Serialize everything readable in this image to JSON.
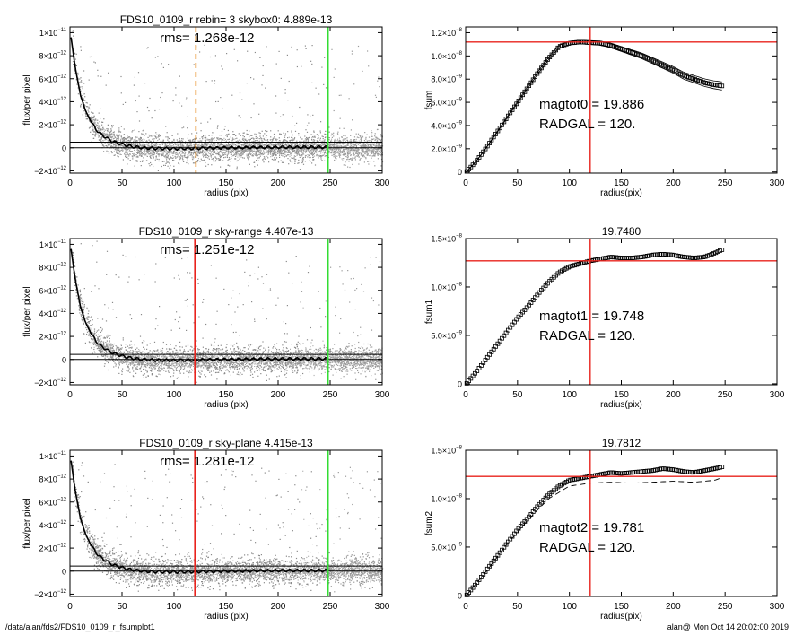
{
  "footer": {
    "left": "/data/alan/fds2/FDS10_0109_r_fsumplot1",
    "right": "alan@  Mon Oct 14 20:02:00 2019"
  },
  "colors": {
    "red": "#e8231d",
    "orange": "#e88a1a",
    "green": "#33dd33",
    "black": "#000000",
    "gray": "#7f7f7f"
  },
  "chart_data": [
    {
      "type": "scatter",
      "title": "FDS10_0109_r rebin= 3    skybox0:  4.889e-13",
      "annotation": "rms= 1.268e-12",
      "xlabel": "radius (pix)",
      "ylabel": "flux/per pixel",
      "xlim": [
        0,
        300
      ],
      "ylim": [
        -2.2e-12,
        1.05e-11
      ],
      "xticks": [
        "0",
        "50",
        "100",
        "150",
        "200",
        "250",
        "300"
      ],
      "ytick_values": [
        -2e-12,
        0,
        2e-12,
        4e-12,
        6e-12,
        8e-12,
        1e-11
      ],
      "ytick_mantissa": [
        "−2×10",
        "0",
        "2×10",
        "4×10",
        "6×10",
        "8×10",
        "1×10"
      ],
      "ytick_exponent": [
        "−12",
        "",
        "−12",
        "−12",
        "−12",
        "−12",
        "−11"
      ],
      "profile": {
        "x": [
          1,
          5,
          10,
          15,
          20,
          25,
          30,
          40,
          50,
          60,
          70,
          80,
          100,
          120,
          150,
          200,
          248
        ],
        "y": [
          9.6e-12,
          7e-12,
          4.6e-12,
          3.2e-12,
          2.3e-12,
          1.6e-12,
          1.15e-12,
          6e-13,
          3e-13,
          1e-13,
          0.0,
          -5e-14,
          -8e-14,
          -5e-14,
          0.0,
          5e-14,
          5e-14
        ]
      },
      "hlines": [
        4.89e-13,
        0
      ],
      "vlines": [
        {
          "x": 121,
          "color": "orange",
          "style": "dashed"
        },
        {
          "x": 248,
          "color": "green",
          "style": "solid"
        }
      ]
    },
    {
      "type": "line",
      "title": "",
      "annotation": [
        "magtot0 =  19.886",
        "RADGAL =    120."
      ],
      "xlabel": "radius(pix)",
      "ylabel": "fsum",
      "xlim": [
        0,
        300
      ],
      "ylim": [
        -1e-10,
        1.25e-08
      ],
      "xticks": [
        "0",
        "50",
        "100",
        "150",
        "200",
        "250",
        "300"
      ],
      "ytick_values": [
        0,
        2e-09,
        4e-09,
        6e-09,
        8e-09,
        1e-08,
        1.2e-08
      ],
      "ytick_mantissa": [
        "0",
        "2.0×10",
        "4.0×10",
        "6.0×10",
        "8.0×10",
        "1.0×10",
        "1.2×10"
      ],
      "ytick_exponent": [
        "",
        "−9",
        "−9",
        "−9",
        "−9",
        "−8",
        "−8"
      ],
      "curve": {
        "x": [
          1,
          10,
          20,
          30,
          40,
          50,
          60,
          70,
          80,
          90,
          100,
          110,
          120,
          130,
          140,
          150,
          160,
          170,
          180,
          190,
          200,
          210,
          220,
          230,
          240,
          248
        ],
        "y": [
          5e-11,
          9e-10,
          2.1e-09,
          3.4e-09,
          4.7e-09,
          6e-09,
          7.3e-09,
          8.6e-09,
          9.8e-09,
          1.08e-08,
          1.11e-08,
          1.12e-08,
          1.115e-08,
          1.11e-08,
          1.09e-08,
          1.06e-08,
          1.03e-08,
          1e-08,
          9.6e-09,
          9.2e-09,
          8.8e-09,
          8.3e-09,
          8e-09,
          7.7e-09,
          7.5e-09,
          7.4e-09
        ]
      },
      "band": 3.5e-10,
      "hline": 1.12e-08,
      "vline": 120
    },
    {
      "type": "scatter",
      "title": "FDS10_0109_r sky-range  4.407e-13",
      "annotation": "rms= 1.251e-12",
      "xlabel": "radius (pix)",
      "ylabel": "flux/per pixel",
      "xlim": [
        0,
        300
      ],
      "ylim": [
        -2.2e-12,
        1.05e-11
      ],
      "xticks": [
        "0",
        "50",
        "100",
        "150",
        "200",
        "250",
        "300"
      ],
      "ytick_values": [
        -2e-12,
        0,
        2e-12,
        4e-12,
        6e-12,
        8e-12,
        1e-11
      ],
      "ytick_mantissa": [
        "−2×10",
        "0",
        "2×10",
        "4×10",
        "6×10",
        "8×10",
        "1×10"
      ],
      "ytick_exponent": [
        "−12",
        "",
        "−12",
        "−12",
        "−12",
        "−12",
        "−11"
      ],
      "profile": {
        "x": [
          1,
          5,
          10,
          15,
          20,
          25,
          30,
          40,
          50,
          60,
          70,
          80,
          100,
          120,
          150,
          200,
          248
        ],
        "y": [
          9.6e-12,
          7e-12,
          4.6e-12,
          3.2e-12,
          2.3e-12,
          1.6e-12,
          1.15e-12,
          6e-13,
          3e-13,
          1e-13,
          0.0,
          -5e-14,
          -8e-14,
          -5e-14,
          0.0,
          5e-14,
          5e-14
        ]
      },
      "hlines": [
        4.4e-13,
        0
      ],
      "vlines": [
        {
          "x": 120,
          "color": "red",
          "style": "solid"
        },
        {
          "x": 248,
          "color": "green",
          "style": "solid"
        }
      ]
    },
    {
      "type": "line",
      "title": "19.7480",
      "annotation": [
        "magtot1 =  19.748",
        "RADGAL =    120."
      ],
      "xlabel": "radius(pix)",
      "ylabel": "fsum1",
      "xlim": [
        0,
        300
      ],
      "ylim": [
        -1e-10,
        1.5e-08
      ],
      "xticks": [
        "0",
        "50",
        "100",
        "150",
        "200",
        "250",
        "300"
      ],
      "ytick_values": [
        0,
        5e-09,
        1e-08,
        1.5e-08
      ],
      "ytick_mantissa": [
        "0",
        "5.0×10",
        "1.0×10",
        "1.5×10"
      ],
      "ytick_exponent": [
        "",
        "−9",
        "−8",
        "−8"
      ],
      "curve": {
        "x": [
          1,
          10,
          20,
          30,
          40,
          50,
          60,
          70,
          80,
          90,
          100,
          110,
          120,
          130,
          140,
          150,
          160,
          170,
          180,
          190,
          200,
          210,
          220,
          230,
          240,
          248
        ],
        "y": [
          5e-11,
          1.2e-09,
          2.6e-09,
          4e-09,
          5.4e-09,
          6.8e-09,
          8e-09,
          9.3e-09,
          1.05e-08,
          1.15e-08,
          1.21e-08,
          1.24e-08,
          1.27e-08,
          1.29e-08,
          1.31e-08,
          1.3e-08,
          1.3e-08,
          1.31e-08,
          1.33e-08,
          1.34e-08,
          1.33e-08,
          1.31e-08,
          1.3e-08,
          1.31e-08,
          1.35e-08,
          1.39e-08
        ]
      },
      "hline": 1.27e-08,
      "vline": 120
    },
    {
      "type": "scatter",
      "title": "FDS10_0109_r sky-plane  4.415e-13",
      "annotation": "rms= 1.281e-12",
      "xlabel": "radius (pix)",
      "ylabel": "flux/per pixel",
      "xlim": [
        0,
        300
      ],
      "ylim": [
        -2.2e-12,
        1.05e-11
      ],
      "xticks": [
        "0",
        "50",
        "100",
        "150",
        "200",
        "250",
        "300"
      ],
      "ytick_values": [
        -2e-12,
        0,
        2e-12,
        4e-12,
        6e-12,
        8e-12,
        1e-11
      ],
      "ytick_mantissa": [
        "−2×10",
        "0",
        "2×10",
        "4×10",
        "6×10",
        "8×10",
        "1×10"
      ],
      "ytick_exponent": [
        "−12",
        "",
        "−12",
        "−12",
        "−12",
        "−12",
        "−11"
      ],
      "profile": {
        "x": [
          1,
          5,
          10,
          15,
          20,
          25,
          30,
          40,
          50,
          60,
          70,
          80,
          100,
          120,
          150,
          200,
          248
        ],
        "y": [
          9.6e-12,
          7e-12,
          4.6e-12,
          3.2e-12,
          2.3e-12,
          1.6e-12,
          1.15e-12,
          6e-13,
          3e-13,
          1e-13,
          0.0,
          -5e-14,
          -8e-14,
          -5e-14,
          0.0,
          5e-14,
          5e-14
        ]
      },
      "hlines": [
        4.4e-13,
        0
      ],
      "vlines": [
        {
          "x": 120,
          "color": "red",
          "style": "solid"
        },
        {
          "x": 248,
          "color": "green",
          "style": "solid"
        }
      ]
    },
    {
      "type": "line",
      "title": "19.7812",
      "annotation": [
        "magtot2 =  19.781",
        "RADGAL =    120."
      ],
      "xlabel": "radius(pix)",
      "ylabel": "fsum2",
      "xlim": [
        0,
        300
      ],
      "ylim": [
        -1e-10,
        1.5e-08
      ],
      "xticks": [
        "0",
        "50",
        "100",
        "150",
        "200",
        "250",
        "300"
      ],
      "ytick_values": [
        0,
        5e-09,
        1e-08,
        1.5e-08
      ],
      "ytick_mantissa": [
        "0",
        "5.0×10",
        "1.0×10",
        "1.5×10"
      ],
      "ytick_exponent": [
        "",
        "−9",
        "−8",
        "−8"
      ],
      "curve": {
        "x": [
          1,
          10,
          20,
          30,
          40,
          50,
          60,
          70,
          80,
          90,
          100,
          110,
          120,
          130,
          140,
          150,
          160,
          170,
          180,
          190,
          200,
          210,
          220,
          230,
          240,
          248
        ],
        "y": [
          5e-11,
          1.2e-09,
          2.6e-09,
          4e-09,
          5.4e-09,
          6.8e-09,
          8e-09,
          9.3e-09,
          1.04e-08,
          1.13e-08,
          1.19e-08,
          1.21e-08,
          1.23e-08,
          1.25e-08,
          1.27e-08,
          1.26e-08,
          1.27e-08,
          1.28e-08,
          1.29e-08,
          1.31e-08,
          1.3e-08,
          1.28e-08,
          1.27e-08,
          1.29e-08,
          1.31e-08,
          1.33e-08
        ]
      },
      "dashed": {
        "x": [
          1,
          20,
          40,
          60,
          80,
          100,
          120,
          140,
          160,
          180,
          200,
          220,
          240,
          248
        ],
        "y": [
          5e-11,
          2.5e-09,
          5.3e-09,
          7.8e-09,
          1e-08,
          1.13e-08,
          1.16e-08,
          1.17e-08,
          1.16e-08,
          1.17e-08,
          1.18e-08,
          1.17e-08,
          1.19e-08,
          1.22e-08
        ]
      },
      "hline": 1.23e-08,
      "vline": 120
    }
  ]
}
